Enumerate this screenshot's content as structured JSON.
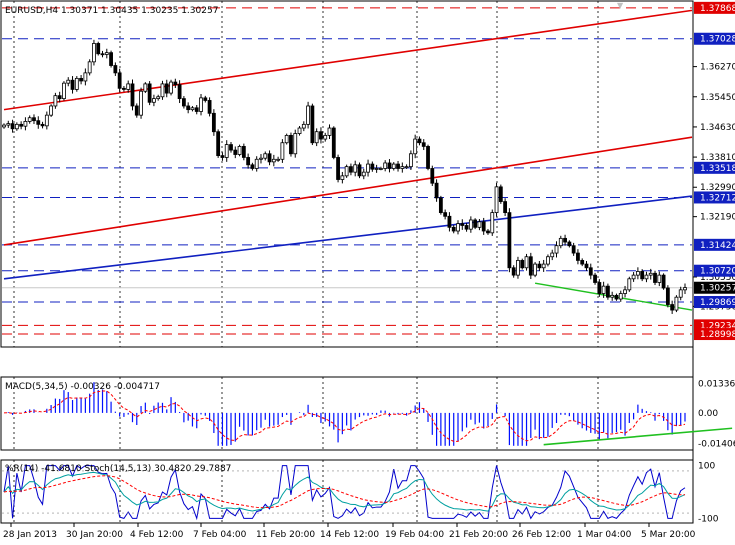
{
  "header": {
    "main": "EURUSD,H4  1.30371 1.30435 1.30235 1.30257",
    "macd": "MACD(5,34,5) -0.00326 -0.004717",
    "osc": "%R(14) -41.6810  Stoch(14,5,13) 30.4820 29.7887"
  },
  "colors": {
    "bull": "#000000",
    "bear": "#000000",
    "red_line": "#e00000",
    "blue_line": "#1020c0",
    "green_line": "#20c020",
    "macd_hist": "#0010ff",
    "macd_signal": "#ff0000",
    "wpr": "#0000cc",
    "stoch_main": "#00a0a0",
    "stoch_signal": "#ff0000",
    "price_bg": "#000000",
    "price_fg": "#ffffff"
  },
  "chart_data": {
    "type": "candlestick",
    "symbol": "EURUSD",
    "timeframe": "H4",
    "ylim": [
      1.287,
      1.38
    ],
    "current_price": "1.30257",
    "price_ticks": [
      "1.36270",
      "1.35450",
      "1.34630",
      "1.33810",
      "1.32990",
      "1.32190",
      "1.30550",
      "1.29750"
    ],
    "level_labels": [
      {
        "label": "1.37868",
        "value": 1.37868,
        "style": "red"
      },
      {
        "label": "1.37028",
        "value": 1.37028,
        "style": "blue"
      },
      {
        "label": "1.33518",
        "value": 1.33518,
        "style": "blue"
      },
      {
        "label": "1.32712",
        "value": 1.32712,
        "style": "blue"
      },
      {
        "label": "1.31424",
        "value": 1.31424,
        "style": "blue"
      },
      {
        "label": "1.30720",
        "value": 1.3072,
        "style": "blue"
      },
      {
        "label": "1.29869",
        "value": 1.29869,
        "style": "blue"
      },
      {
        "label": "1.29234",
        "value": 1.29234,
        "style": "red"
      },
      {
        "label": "1.28998",
        "value": 1.28998,
        "style": "red"
      }
    ],
    "date_labels": [
      "28 Jan 2013",
      "30 Jan 20:00",
      "4 Feb 12:00",
      "7 Feb 04:00",
      "11 Feb 20:00",
      "14 Feb 12:00",
      "19 Feb 04:00",
      "21 Feb 20:00",
      "26 Feb 12:00",
      "1 Mar 04:00",
      "5 Mar 20:00"
    ],
    "closes": [
      1.3468,
      1.3472,
      1.3458,
      1.347,
      1.3465,
      1.3478,
      1.3488,
      1.348,
      1.347,
      1.3466,
      1.3495,
      1.352,
      1.3548,
      1.354,
      1.3582,
      1.359,
      1.3565,
      1.3595,
      1.3588,
      1.361,
      1.364,
      1.369,
      1.3662,
      1.366,
      1.3665,
      1.363,
      1.361,
      1.3568,
      1.3565,
      1.358,
      1.352,
      1.3495,
      1.356,
      1.358,
      1.353,
      1.354,
      1.3545,
      1.358,
      1.3555,
      1.3585,
      1.3578,
      1.354,
      1.352,
      1.351,
      1.3515,
      1.3505,
      1.3542,
      1.3535,
      1.35,
      1.345,
      1.3385,
      1.338,
      1.3415,
      1.34,
      1.3388,
      1.341,
      1.338,
      1.336,
      1.335,
      1.3375,
      1.3378,
      1.339,
      1.3368,
      1.3375,
      1.3375,
      1.342,
      1.344,
      1.339,
      1.3445,
      1.346,
      1.347,
      1.352,
      1.342,
      1.345,
      1.343,
      1.344,
      1.346,
      1.338,
      1.332,
      1.333,
      1.3355,
      1.334,
      1.336,
      1.333,
      1.334,
      1.3362,
      1.3348,
      1.335,
      1.335,
      1.3365,
      1.335,
      1.3362,
      1.335,
      1.3355,
      1.3355,
      1.339,
      1.343,
      1.342,
      1.341,
      1.335,
      1.331,
      1.327,
      1.323,
      1.322,
      1.319,
      1.318,
      1.32,
      1.3195,
      1.3185,
      1.321,
      1.319,
      1.3205,
      1.318,
      1.3175,
      1.323,
      1.33,
      1.326,
      1.323,
      1.308,
      1.306,
      1.31,
      1.308,
      1.311,
      1.306,
      1.309,
      1.308,
      1.309,
      1.311,
      1.312,
      1.314,
      1.316,
      1.315,
      1.314,
      1.312,
      1.31,
      1.309,
      1.308,
      1.306,
      1.304,
      1.301,
      1.303,
      1.3,
      1.3005,
      1.2995,
      1.301,
      1.302,
      1.305,
      1.306,
      1.307,
      1.305,
      1.306,
      1.3065,
      1.304,
      1.306,
      1.3025,
      1.298,
      1.2965,
      1.3,
      1.302,
      1.3026
    ],
    "trend_lines": [
      {
        "color": "red",
        "from": [
          0,
          1.351
        ],
        "to": [
          170,
          1.378
        ]
      },
      {
        "color": "red",
        "from": [
          0,
          1.3142
        ],
        "to": [
          170,
          1.3435
        ]
      },
      {
        "color": "blue",
        "from": [
          0,
          1.305
        ],
        "to": [
          170,
          1.3275
        ]
      },
      {
        "color": "green",
        "from": [
          124,
          1.3038
        ],
        "to": [
          162,
          1.2965
        ]
      }
    ],
    "macd": {
      "ylim": [
        -0.016,
        0.015
      ],
      "ticks": [
        "0.01336",
        "0.00",
        "-0.01406"
      ],
      "support_line": {
        "from": [
          126,
          -0.0145
        ],
        "to": [
          170,
          -0.007
        ]
      }
    },
    "oscillator": {
      "ylim": [
        -110,
        110
      ],
      "ticks": [
        "100",
        "-100"
      ]
    }
  }
}
